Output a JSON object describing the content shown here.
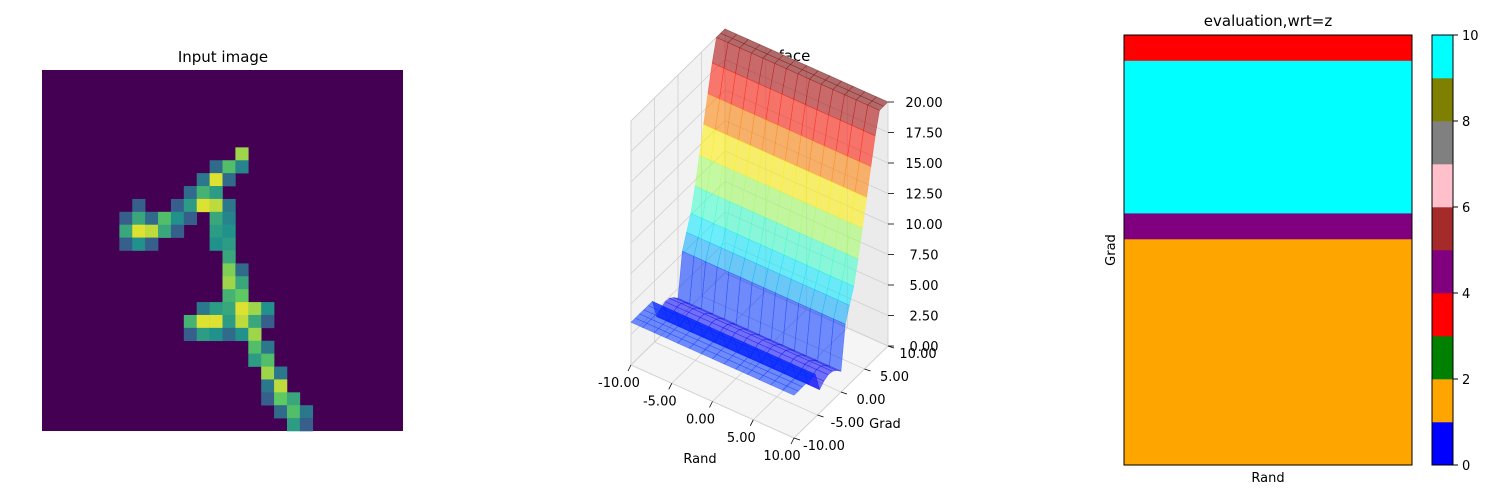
{
  "chart_data": [
    {
      "type": "heatmap",
      "title": "Input image",
      "rows": 28,
      "cols": 28,
      "colormap": "viridis",
      "cells": [
        {
          "r": 6,
          "c": 15,
          "v": 0.85
        },
        {
          "r": 7,
          "c": 13,
          "v": 0.35
        },
        {
          "r": 7,
          "c": 14,
          "v": 0.7
        },
        {
          "r": 7,
          "c": 15,
          "v": 0.45
        },
        {
          "r": 8,
          "c": 12,
          "v": 0.4
        },
        {
          "r": 8,
          "c": 13,
          "v": 0.95
        },
        {
          "r": 8,
          "c": 14,
          "v": 0.35
        },
        {
          "r": 9,
          "c": 11,
          "v": 0.35
        },
        {
          "r": 9,
          "c": 12,
          "v": 0.65
        },
        {
          "r": 9,
          "c": 13,
          "v": 0.55
        },
        {
          "r": 10,
          "c": 7,
          "v": 0.3
        },
        {
          "r": 10,
          "c": 10,
          "v": 0.3
        },
        {
          "r": 10,
          "c": 11,
          "v": 0.55
        },
        {
          "r": 10,
          "c": 12,
          "v": 0.95
        },
        {
          "r": 10,
          "c": 13,
          "v": 0.9
        },
        {
          "r": 10,
          "c": 14,
          "v": 0.4
        },
        {
          "r": 11,
          "c": 6,
          "v": 0.3
        },
        {
          "r": 11,
          "c": 7,
          "v": 0.6
        },
        {
          "r": 11,
          "c": 8,
          "v": 0.35
        },
        {
          "r": 11,
          "c": 9,
          "v": 0.7
        },
        {
          "r": 11,
          "c": 10,
          "v": 0.5
        },
        {
          "r": 11,
          "c": 11,
          "v": 0.3
        },
        {
          "r": 11,
          "c": 13,
          "v": 0.6
        },
        {
          "r": 11,
          "c": 14,
          "v": 0.45
        },
        {
          "r": 12,
          "c": 6,
          "v": 0.6
        },
        {
          "r": 12,
          "c": 7,
          "v": 0.95
        },
        {
          "r": 12,
          "c": 8,
          "v": 0.9
        },
        {
          "r": 12,
          "c": 9,
          "v": 0.6
        },
        {
          "r": 12,
          "c": 10,
          "v": 0.3
        },
        {
          "r": 12,
          "c": 13,
          "v": 0.55
        },
        {
          "r": 12,
          "c": 14,
          "v": 0.5
        },
        {
          "r": 13,
          "c": 6,
          "v": 0.3
        },
        {
          "r": 13,
          "c": 7,
          "v": 0.5
        },
        {
          "r": 13,
          "c": 8,
          "v": 0.3
        },
        {
          "r": 13,
          "c": 13,
          "v": 0.5
        },
        {
          "r": 13,
          "c": 14,
          "v": 0.55
        },
        {
          "r": 14,
          "c": 14,
          "v": 0.6
        },
        {
          "r": 15,
          "c": 14,
          "v": 0.8
        },
        {
          "r": 15,
          "c": 15,
          "v": 0.35
        },
        {
          "r": 16,
          "c": 14,
          "v": 0.85
        },
        {
          "r": 16,
          "c": 15,
          "v": 0.6
        },
        {
          "r": 17,
          "c": 14,
          "v": 0.65
        },
        {
          "r": 17,
          "c": 15,
          "v": 0.75
        },
        {
          "r": 18,
          "c": 12,
          "v": 0.4
        },
        {
          "r": 18,
          "c": 13,
          "v": 0.55
        },
        {
          "r": 18,
          "c": 14,
          "v": 0.6
        },
        {
          "r": 18,
          "c": 15,
          "v": 0.95
        },
        {
          "r": 18,
          "c": 16,
          "v": 0.85
        },
        {
          "r": 18,
          "c": 17,
          "v": 0.5
        },
        {
          "r": 19,
          "c": 11,
          "v": 0.65
        },
        {
          "r": 19,
          "c": 12,
          "v": 0.95
        },
        {
          "r": 19,
          "c": 13,
          "v": 0.95
        },
        {
          "r": 19,
          "c": 14,
          "v": 0.55
        },
        {
          "r": 19,
          "c": 15,
          "v": 0.9
        },
        {
          "r": 19,
          "c": 16,
          "v": 0.6
        },
        {
          "r": 19,
          "c": 17,
          "v": 0.3
        },
        {
          "r": 20,
          "c": 11,
          "v": 0.3
        },
        {
          "r": 20,
          "c": 12,
          "v": 0.55
        },
        {
          "r": 20,
          "c": 13,
          "v": 0.5
        },
        {
          "r": 20,
          "c": 14,
          "v": 0.35
        },
        {
          "r": 20,
          "c": 15,
          "v": 0.5
        },
        {
          "r": 20,
          "c": 16,
          "v": 0.85
        },
        {
          "r": 21,
          "c": 16,
          "v": 0.7
        },
        {
          "r": 21,
          "c": 17,
          "v": 0.4
        },
        {
          "r": 22,
          "c": 16,
          "v": 0.55
        },
        {
          "r": 22,
          "c": 17,
          "v": 0.7
        },
        {
          "r": 23,
          "c": 17,
          "v": 0.85
        },
        {
          "r": 23,
          "c": 18,
          "v": 0.4
        },
        {
          "r": 24,
          "c": 17,
          "v": 0.4
        },
        {
          "r": 24,
          "c": 18,
          "v": 0.9
        },
        {
          "r": 25,
          "c": 17,
          "v": 0.3
        },
        {
          "r": 25,
          "c": 18,
          "v": 0.75
        },
        {
          "r": 25,
          "c": 19,
          "v": 0.6
        },
        {
          "r": 26,
          "c": 18,
          "v": 0.35
        },
        {
          "r": 26,
          "c": 19,
          "v": 0.7
        },
        {
          "r": 26,
          "c": 20,
          "v": 0.4
        },
        {
          "r": 27,
          "c": 19,
          "v": 0.55
        },
        {
          "r": 27,
          "c": 20,
          "v": 0.3
        }
      ]
    },
    {
      "type": "surface3d",
      "title": "Loss Surface",
      "xlabel": "Rand",
      "ylabel": "Grad",
      "x_ticks": [
        "-10.00",
        "-5.00",
        "0.00",
        "5.00",
        "10.00"
      ],
      "y_ticks": [
        "-10.00",
        "-5.00",
        "0.00",
        "5.00",
        "10.00"
      ],
      "z_ticks": [
        "0.00",
        "2.50",
        "5.00",
        "7.50",
        "10.00",
        "12.50",
        "15.00",
        "17.50",
        "20.00"
      ],
      "xlim": [
        -10,
        10
      ],
      "ylim": [
        -10,
        10
      ],
      "zlim": [
        0,
        20
      ],
      "colormap": "jet"
    },
    {
      "type": "heatmap",
      "title": "evaluation,wrt=z",
      "xlabel": "Rand",
      "ylabel": "Grad",
      "bands": [
        {
          "from": 0,
          "to": 0.06,
          "class": 3
        },
        {
          "from": 0.06,
          "to": 0.415,
          "class": 9
        },
        {
          "from": 0.415,
          "to": 0.475,
          "class": 4
        },
        {
          "from": 0.475,
          "to": 1,
          "class": 1
        }
      ],
      "colorbar": {
        "colors": [
          "#0000ff",
          "#ffa500",
          "#008000",
          "#ff0000",
          "#800080",
          "#a52a2a",
          "#ffc0cb",
          "#808080",
          "#808000",
          "#00ffff"
        ],
        "ticks": [
          "0",
          "2",
          "4",
          "6",
          "8",
          "10"
        ],
        "range": [
          0,
          10
        ]
      }
    }
  ]
}
